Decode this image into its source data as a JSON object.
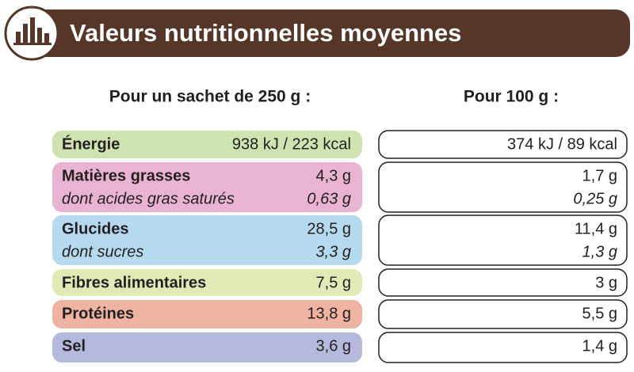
{
  "header": {
    "title": "Valeurs nutritionnelles moyennes"
  },
  "columns": [
    "Pour un sachet de 250 g :",
    "Pour 100 g :"
  ],
  "rows": [
    {
      "label": "Énergie",
      "per_sachet": "938 kJ / 223 kcal",
      "per_100g": "374 kJ / 89 kcal"
    },
    {
      "label": "Matières grasses",
      "per_sachet": "4,3 g",
      "per_100g": "1,7 g",
      "sub_label": "dont acides gras saturés",
      "sub_per_sachet": "0,63 g",
      "sub_per_100g": "0,25 g"
    },
    {
      "label": "Glucides",
      "per_sachet": "28,5 g",
      "per_100g": "11,4 g",
      "sub_label": "dont sucres",
      "sub_per_sachet": "3,3 g",
      "sub_per_100g": "1,3 g"
    },
    {
      "label": "Fibres alimentaires",
      "per_sachet": "7,5 g",
      "per_100g": "3 g"
    },
    {
      "label": "Protéines",
      "per_sachet": "13,8 g",
      "per_100g": "5,5 g"
    },
    {
      "label": "Sel",
      "per_sachet": "3,6 g",
      "per_100g": "1,4 g"
    }
  ]
}
